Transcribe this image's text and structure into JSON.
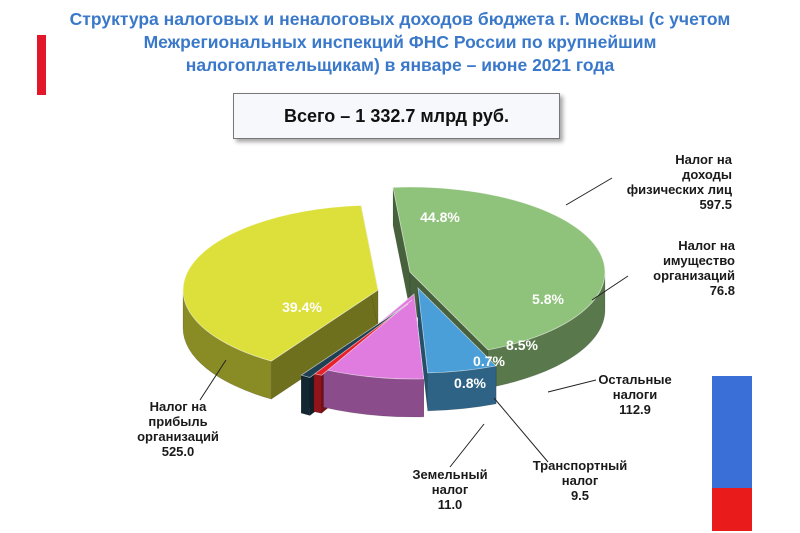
{
  "title": "Структура  налоговых и неналоговых доходов бюджета г. Москвы (с учетом Межрегиональных инспекций ФНС России по крупнейшим налогоплательщикам) в январе – июне 2021 года",
  "total": "Всего – 1 332.7 млрд руб.",
  "chart_data": {
    "type": "pie",
    "title": "Структура  налоговых и неналоговых доходов бюджета г. Москвы (с учетом Межрегиональных инспекций ФНС России по крупнейшим налогоплательщикам) в январе – июне 2021 года",
    "total_label": "Всего – 1 332.7 млрд руб.",
    "slices": [
      {
        "key": "ndfl",
        "name": "Налог на доходы физических лиц",
        "value": 597.5,
        "value_label": "597.5",
        "percent": "44.8%",
        "color": "#8fc27a"
      },
      {
        "key": "property",
        "name": "Налог на имущество организаций",
        "value": 76.8,
        "value_label": "76.8",
        "percent": "5.8%",
        "color": "#4a9fd8"
      },
      {
        "key": "other",
        "name": "Остальные налоги",
        "value": 112.9,
        "value_label": "112.9",
        "percent": "8.5%",
        "color": "#e07be0"
      },
      {
        "key": "transport",
        "name": "Транспортный налог",
        "value": 9.5,
        "value_label": "9.5",
        "percent": "0.7%",
        "color": "#e8202a"
      },
      {
        "key": "land",
        "name": "Земельный налог",
        "value": 11.0,
        "value_label": "11.0",
        "percent": "0.8%",
        "color": "#1f3f52"
      },
      {
        "key": "profit",
        "name": "Налог на прибыль организаций",
        "value": 525.0,
        "value_label": "525.0",
        "percent": "39.4%",
        "color": "#dde03a"
      }
    ]
  },
  "labels": {
    "ndfl": {
      "name": "Налог на\nдоходы\nфизических лиц",
      "val": "597.5"
    },
    "property": {
      "name": "Налог на\nимущество\nорганизаций",
      "val": "76.8"
    },
    "other": {
      "name": "Остальные\nналоги",
      "val": "112.9"
    },
    "transport": {
      "name": "Транспортный\nналог",
      "val": "9.5"
    },
    "land": {
      "name": "Земельный\nналог",
      "val": "11.0"
    },
    "profit": {
      "name": "Налог на\nприбыль\nорганизаций",
      "val": "525.0"
    }
  }
}
